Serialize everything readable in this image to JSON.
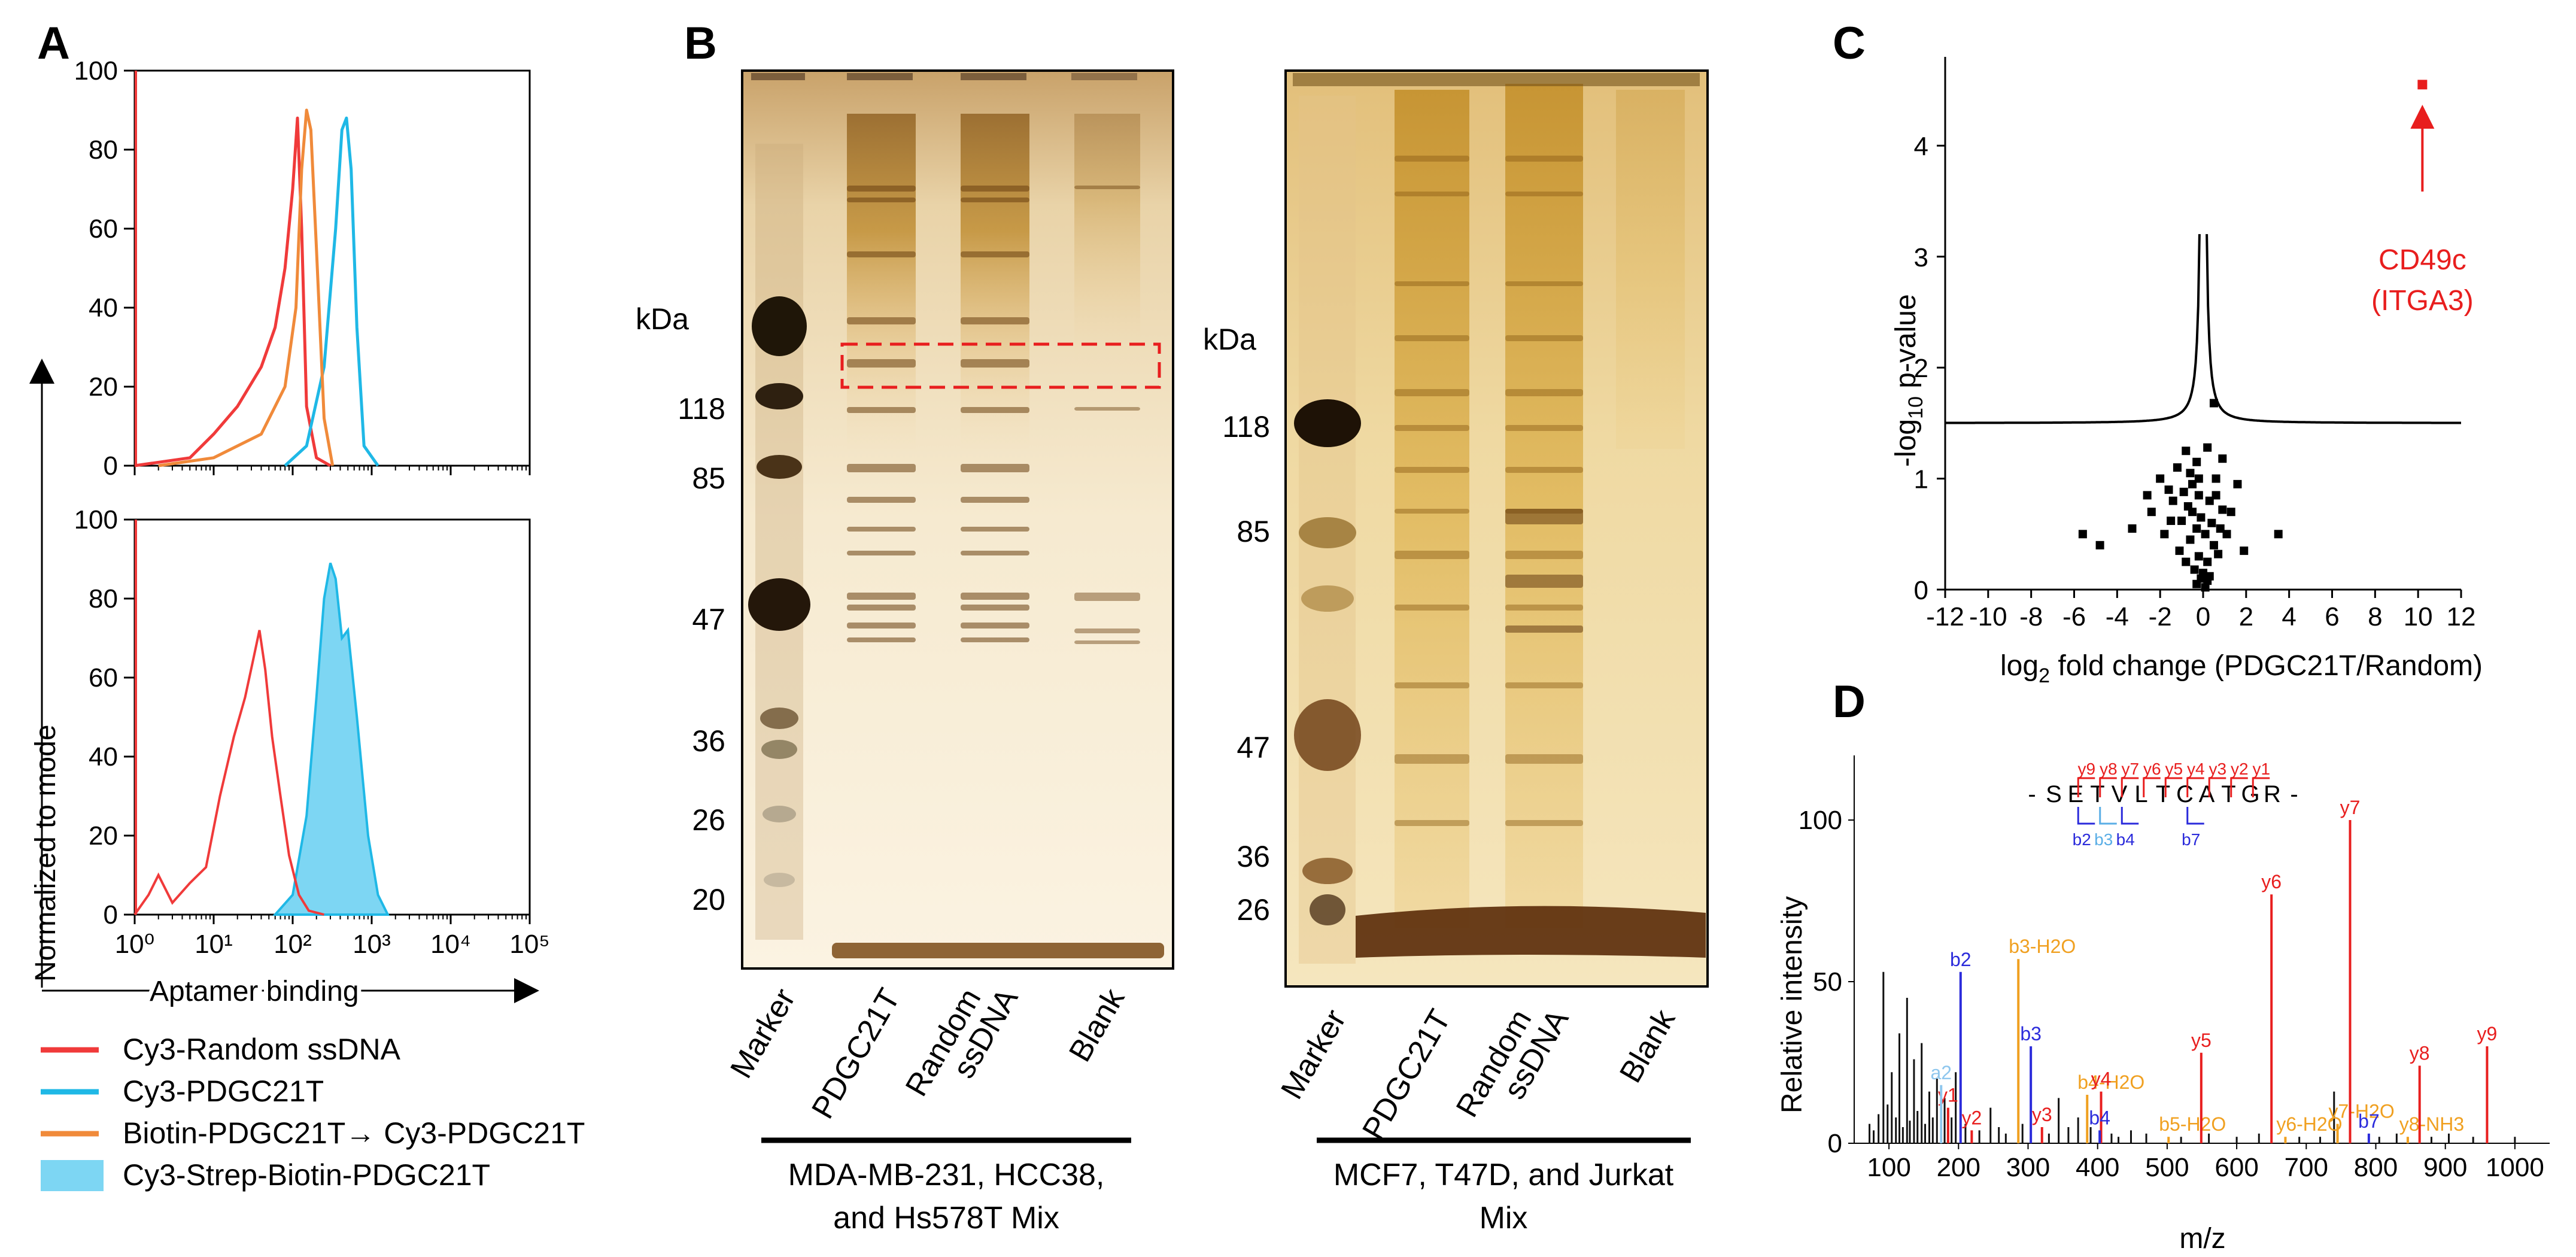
{
  "panels": {
    "a": "A",
    "b": "B",
    "c": "C",
    "d": "D"
  },
  "panel_a": {
    "ylabel": "Normalized to mode",
    "xlabel": "Aptamer binding",
    "yticks": [
      "0",
      "20",
      "40",
      "60",
      "80",
      "100"
    ],
    "xticks": [
      "10⁰",
      "10¹",
      "10²",
      "10³",
      "10⁴",
      "10⁵"
    ],
    "legend": [
      {
        "label": "Cy3-Random  ssDNA",
        "color": "#f03a3a",
        "kind": "line"
      },
      {
        "label": "Cy3-PDGC21T",
        "color": "#1fb8e6",
        "kind": "line"
      },
      {
        "label": "Biotin-PDGC21T→ Cy3-PDGC21T",
        "color": "#f08a3a",
        "kind": "line"
      },
      {
        "label": "Cy3-Strep-Biotin-PDGC21T",
        "color": "#7dd6f3",
        "kind": "fill"
      }
    ]
  },
  "panel_b": {
    "kda": "kDa",
    "gel1": {
      "markers": [
        "118",
        "85",
        "47",
        "36",
        "26",
        "20"
      ],
      "lanes": [
        "Marker",
        "PDGC21T",
        "Random ssDNA",
        "Blank"
      ],
      "lane_lines": [
        [
          "Marker"
        ],
        [
          "PDGC21T"
        ],
        [
          "Random",
          "ssDNA"
        ],
        [
          "Blank"
        ]
      ],
      "caption": [
        "MDA-MB-231, HCC38,",
        "and Hs578T Mix"
      ]
    },
    "gel2": {
      "markers": [
        "118",
        "85",
        "47",
        "36",
        "26"
      ],
      "lanes": [
        "Marker",
        "PDGC21T",
        "Random ssDNA",
        "Blank"
      ],
      "lane_lines": [
        [
          "Marker"
        ],
        [
          "PDGC21T"
        ],
        [
          "Random",
          "ssDNA"
        ],
        [
          "Blank"
        ]
      ],
      "caption": [
        "MCF7, T47D, and Jurkat",
        "Mix"
      ]
    }
  },
  "chart_data": [
    {
      "type": "line",
      "panel": "A-top",
      "xscale": "log",
      "xlim": [
        1,
        100000
      ],
      "ylim": [
        0,
        100
      ],
      "ylabel": "Normalized to mode",
      "xlabel": "Aptamer binding",
      "series": [
        {
          "name": "Cy3-Random  ssDNA",
          "color": "#f03a3a",
          "x": [
            1,
            5,
            10,
            20,
            40,
            60,
            80,
            100,
            115,
            130,
            150,
            200,
            300
          ],
          "y": [
            0,
            2,
            8,
            15,
            25,
            35,
            50,
            70,
            88,
            60,
            15,
            2,
            0
          ]
        },
        {
          "name": "Cy3-PDGC21T",
          "color": "#1fb8e6",
          "x": [
            80,
            150,
            250,
            350,
            420,
            480,
            550,
            650,
            800,
            1200
          ],
          "y": [
            0,
            5,
            25,
            60,
            85,
            88,
            75,
            35,
            5,
            0
          ]
        },
        {
          "name": "Biotin-PDGC21T→ Cy3-PDGC21T",
          "color": "#f08a3a",
          "x": [
            2,
            10,
            40,
            80,
            110,
            130,
            150,
            170,
            200,
            250,
            320
          ],
          "y": [
            0,
            2,
            8,
            20,
            40,
            75,
            90,
            85,
            55,
            12,
            0
          ]
        }
      ]
    },
    {
      "type": "area",
      "panel": "A-bottom",
      "xscale": "log",
      "xlim": [
        1,
        100000
      ],
      "ylim": [
        0,
        100
      ],
      "ylabel": "Normalized to mode",
      "xlabel": "Aptamer binding",
      "series": [
        {
          "name": "Cy3-Random  ssDNA",
          "color": "#f03a3a",
          "x": [
            1,
            1.5,
            2,
            3,
            5,
            8,
            12,
            18,
            25,
            32,
            38,
            45,
            55,
            70,
            90,
            120,
            160,
            250
          ],
          "y": [
            0,
            5,
            10,
            3,
            8,
            12,
            30,
            45,
            55,
            65,
            72,
            62,
            45,
            30,
            15,
            5,
            1,
            0
          ]
        },
        {
          "name": "Cy3-Strep-Biotin-PDGC21T",
          "color": "#7dd6f3",
          "x": [
            60,
            100,
            150,
            200,
            250,
            300,
            350,
            420,
            500,
            650,
            900,
            1200,
            1600
          ],
          "y": [
            0,
            5,
            25,
            55,
            80,
            89,
            85,
            70,
            72,
            50,
            20,
            5,
            0
          ]
        }
      ]
    },
    {
      "type": "scatter",
      "panel": "C",
      "xlabel": "log2 fold change (PDGC21T/Random)",
      "ylabel": "-log10 p-value",
      "xlim": [
        -12,
        12
      ],
      "ylim": [
        0,
        4.8
      ],
      "xticks": [
        "-12",
        "-10",
        "-8",
        "-6",
        "-4",
        "-2",
        "0",
        "2",
        "4",
        "6",
        "8",
        "10",
        "12"
      ],
      "yticks": [
        "0",
        "1",
        "2",
        "3",
        "4"
      ],
      "highlight": {
        "label": [
          "CD49c",
          "(ITGA3)"
        ],
        "x": 10.2,
        "y": 4.55,
        "color": "#e81e1e"
      },
      "points": [
        [
          0.5,
          1.68
        ],
        [
          -0.8,
          1.25
        ],
        [
          0.2,
          1.28
        ],
        [
          0.9,
          1.18
        ],
        [
          -0.3,
          1.15
        ],
        [
          -1.2,
          1.1
        ],
        [
          -0.6,
          1.05
        ],
        [
          -2.0,
          1.0
        ],
        [
          0.6,
          1.0
        ],
        [
          1.6,
          0.95
        ],
        [
          -1.6,
          0.9
        ],
        [
          -0.9,
          0.88
        ],
        [
          -0.2,
          0.85
        ],
        [
          -1.4,
          0.8
        ],
        [
          0.3,
          0.8
        ],
        [
          -0.7,
          0.75
        ],
        [
          -2.4,
          0.7
        ],
        [
          -0.5,
          0.7
        ],
        [
          0.9,
          0.72
        ],
        [
          -0.1,
          0.65
        ],
        [
          -1.0,
          0.62
        ],
        [
          0.4,
          0.6
        ],
        [
          -3.3,
          0.55
        ],
        [
          -0.3,
          0.55
        ],
        [
          -1.8,
          0.5
        ],
        [
          0.1,
          0.5
        ],
        [
          1.1,
          0.5
        ],
        [
          3.5,
          0.5
        ],
        [
          -5.6,
          0.5
        ],
        [
          -0.6,
          0.45
        ],
        [
          -4.8,
          0.4
        ],
        [
          0.5,
          0.4
        ],
        [
          -1.1,
          0.35
        ],
        [
          1.9,
          0.35
        ],
        [
          -0.2,
          0.3
        ],
        [
          0.7,
          0.32
        ],
        [
          -0.8,
          0.25
        ],
        [
          0.2,
          0.25
        ],
        [
          -0.4,
          0.18
        ],
        [
          0.0,
          0.15
        ],
        [
          0.3,
          0.12
        ],
        [
          -0.1,
          0.1
        ],
        [
          0.2,
          0.08
        ],
        [
          -0.3,
          0.05
        ],
        [
          0.1,
          0.02
        ],
        [
          -0.2,
          1.0
        ],
        [
          0.6,
          0.85
        ],
        [
          -0.5,
          0.95
        ],
        [
          1.3,
          0.7
        ],
        [
          -1.5,
          0.62
        ],
        [
          0.8,
          0.55
        ],
        [
          -2.6,
          0.85
        ]
      ]
    },
    {
      "type": "bar",
      "panel": "D",
      "xlabel": "m/z",
      "ylabel": "Relative intensity",
      "xlim": [
        50,
        1050
      ],
      "ylim": [
        0,
        120
      ],
      "xticks": [
        "100",
        "200",
        "300",
        "400",
        "500",
        "600",
        "700",
        "800",
        "900",
        "1000"
      ],
      "yticks": [
        "0",
        "50",
        "100"
      ],
      "peptide": {
        "sequence": "- S E T V L T C A T G R -",
        "y_ions": [
          "y9",
          "y8",
          "y7",
          "y6",
          "y5",
          "y4",
          "y3",
          "y2",
          "y1"
        ],
        "b_ions": [
          "b2",
          "b3",
          "b4",
          "b7"
        ]
      },
      "labeled_peaks": [
        {
          "mz": 185,
          "i": 11,
          "label": "y1",
          "color": "#e81e1e"
        },
        {
          "mz": 175,
          "i": 18,
          "label": "a2",
          "color": "#8fc7ee"
        },
        {
          "mz": 203,
          "i": 53,
          "label": "b2",
          "color": "#2b2bdb"
        },
        {
          "mz": 219,
          "i": 4,
          "label": "y2",
          "color": "#e81e1e"
        },
        {
          "mz": 286,
          "i": 57,
          "label": "b3-H2O",
          "color": "#f0a020"
        },
        {
          "mz": 304,
          "i": 30,
          "label": "b3",
          "color": "#2b2bdb"
        },
        {
          "mz": 320,
          "i": 5,
          "label": "y3",
          "color": "#e81e1e"
        },
        {
          "mz": 385,
          "i": 15,
          "label": "b4-H2O",
          "color": "#f0a020"
        },
        {
          "mz": 405,
          "i": 16,
          "label": "y4",
          "color": "#e81e1e"
        },
        {
          "mz": 403,
          "i": 4,
          "label": "b4",
          "color": "#2b2bdb"
        },
        {
          "mz": 502,
          "i": 2,
          "label": "b5-H2O",
          "color": "#f0a020"
        },
        {
          "mz": 549,
          "i": 28,
          "label": "y5",
          "color": "#e81e1e"
        },
        {
          "mz": 650,
          "i": 77,
          "label": "y6",
          "color": "#e81e1e"
        },
        {
          "mz": 670,
          "i": 2,
          "label": "y6-H2O",
          "color": "#f0a020"
        },
        {
          "mz": 745,
          "i": 6,
          "label": "y7-H2O",
          "color": "#f0a020"
        },
        {
          "mz": 763,
          "i": 100,
          "label": "y7",
          "color": "#e81e1e"
        },
        {
          "mz": 790,
          "i": 3,
          "label": "b7",
          "color": "#2b2bdb"
        },
        {
          "mz": 846,
          "i": 2,
          "label": "y8-NH3",
          "color": "#f0a020"
        },
        {
          "mz": 863,
          "i": 24,
          "label": "y8",
          "color": "#e81e1e"
        },
        {
          "mz": 960,
          "i": 30,
          "label": "y9",
          "color": "#e81e1e"
        }
      ],
      "noise_peaks": [
        [
          72,
          6
        ],
        [
          78,
          4
        ],
        [
          85,
          9
        ],
        [
          92,
          53
        ],
        [
          98,
          12
        ],
        [
          104,
          22
        ],
        [
          110,
          8
        ],
        [
          115,
          34
        ],
        [
          120,
          5
        ],
        [
          126,
          45
        ],
        [
          130,
          7
        ],
        [
          136,
          26
        ],
        [
          141,
          10
        ],
        [
          147,
          31
        ],
        [
          152,
          6
        ],
        [
          158,
          16
        ],
        [
          163,
          8
        ],
        [
          169,
          20
        ],
        [
          180,
          14
        ],
        [
          190,
          8
        ],
        [
          196,
          22
        ],
        [
          210,
          6
        ],
        [
          230,
          4
        ],
        [
          246,
          11
        ],
        [
          258,
          5
        ],
        [
          268,
          3
        ],
        [
          292,
          6
        ],
        [
          330,
          3
        ],
        [
          344,
          14
        ],
        [
          358,
          5
        ],
        [
          372,
          8
        ],
        [
          390,
          5
        ],
        [
          420,
          3
        ],
        [
          430,
          2
        ],
        [
          448,
          4
        ],
        [
          470,
          3
        ],
        [
          520,
          2
        ],
        [
          560,
          3
        ],
        [
          600,
          2
        ],
        [
          632,
          3
        ],
        [
          690,
          2
        ],
        [
          720,
          2
        ],
        [
          740,
          16
        ],
        [
          805,
          2
        ],
        [
          830,
          3
        ],
        [
          880,
          2
        ],
        [
          905,
          3
        ],
        [
          940,
          2
        ],
        [
          1000,
          2
        ]
      ]
    }
  ]
}
